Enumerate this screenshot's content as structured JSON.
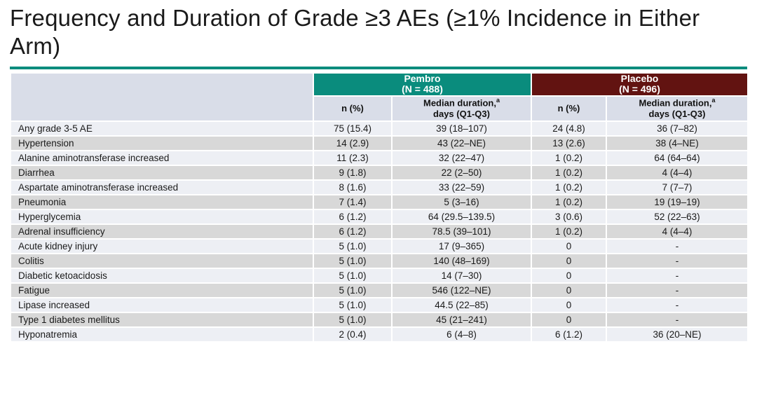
{
  "slide": {
    "title": "Frequency and Duration of Grade ≥3 AEs (≥1% Incidence in Either Arm)"
  },
  "colors": {
    "accent_teal": "#0A8C7D",
    "placebo_maroon": "#621311",
    "header_lavender": "#D9DDE8",
    "row_light": "#EDEFF4",
    "row_gray": "#D8D8D8",
    "title_text": "#1A1A1A",
    "header_text_light": "#FFFFFF",
    "body_text": "#1A1A1A"
  },
  "table": {
    "groups": [
      {
        "name": "Pembro",
        "n_label": "(N = 488)"
      },
      {
        "name": "Placebo",
        "n_label": "(N = 496)"
      }
    ],
    "subheader": {
      "n_pct": "n (%)",
      "median_line1": "Median duration,",
      "median_sup": "a",
      "median_line2": "days (Q1-Q3)"
    },
    "rows": [
      {
        "ae": "Any grade 3-5 AE",
        "pembro_n": "75 (15.4)",
        "pembro_duration": "39 (18–107)",
        "placebo_n": "24 (4.8)",
        "placebo_duration": "36 (7–82)"
      },
      {
        "ae": "Hypertension",
        "pembro_n": "14 (2.9)",
        "pembro_duration": "43 (22–NE)",
        "placebo_n": "13 (2.6)",
        "placebo_duration": "38 (4–NE)"
      },
      {
        "ae": "Alanine aminotransferase increased",
        "pembro_n": "11 (2.3)",
        "pembro_duration": "32 (22–47)",
        "placebo_n": "1 (0.2)",
        "placebo_duration": "64 (64–64)"
      },
      {
        "ae": "Diarrhea",
        "pembro_n": "9 (1.8)",
        "pembro_duration": "22 (2–50)",
        "placebo_n": "1 (0.2)",
        "placebo_duration": "4 (4–4)"
      },
      {
        "ae": "Aspartate aminotransferase increased",
        "pembro_n": "8 (1.6)",
        "pembro_duration": "33 (22–59)",
        "placebo_n": "1 (0.2)",
        "placebo_duration": "7 (7–7)"
      },
      {
        "ae": "Pneumonia",
        "pembro_n": "7 (1.4)",
        "pembro_duration": "5 (3–16)",
        "placebo_n": "1 (0.2)",
        "placebo_duration": "19 (19–19)"
      },
      {
        "ae": "Hyperglycemia",
        "pembro_n": "6 (1.2)",
        "pembro_duration": "64 (29.5–139.5)",
        "placebo_n": "3 (0.6)",
        "placebo_duration": "52 (22–63)"
      },
      {
        "ae": "Adrenal insufficiency",
        "pembro_n": "6 (1.2)",
        "pembro_duration": "78.5 (39–101)",
        "placebo_n": "1 (0.2)",
        "placebo_duration": "4 (4–4)"
      },
      {
        "ae": "Acute kidney injury",
        "pembro_n": "5 (1.0)",
        "pembro_duration": "17 (9–365)",
        "placebo_n": "0",
        "placebo_duration": "-"
      },
      {
        "ae": "Colitis",
        "pembro_n": "5 (1.0)",
        "pembro_duration": "140 (48–169)",
        "placebo_n": "0",
        "placebo_duration": "-"
      },
      {
        "ae": "Diabetic ketoacidosis",
        "pembro_n": "5 (1.0)",
        "pembro_duration": "14 (7–30)",
        "placebo_n": "0",
        "placebo_duration": "-"
      },
      {
        "ae": "Fatigue",
        "pembro_n": "5 (1.0)",
        "pembro_duration": "546 (122–NE)",
        "placebo_n": "0",
        "placebo_duration": "-"
      },
      {
        "ae": "Lipase increased",
        "pembro_n": "5 (1.0)",
        "pembro_duration": "44.5 (22–85)",
        "placebo_n": "0",
        "placebo_duration": "-"
      },
      {
        "ae": "Type 1 diabetes mellitus",
        "pembro_n": "5 (1.0)",
        "pembro_duration": "45 (21–241)",
        "placebo_n": "0",
        "placebo_duration": "-"
      },
      {
        "ae": "Hyponatremia",
        "pembro_n": "2 (0.4)",
        "pembro_duration": "6 (4–8)",
        "placebo_n": "6 (1.2)",
        "placebo_duration": "36 (20–NE)"
      }
    ]
  }
}
